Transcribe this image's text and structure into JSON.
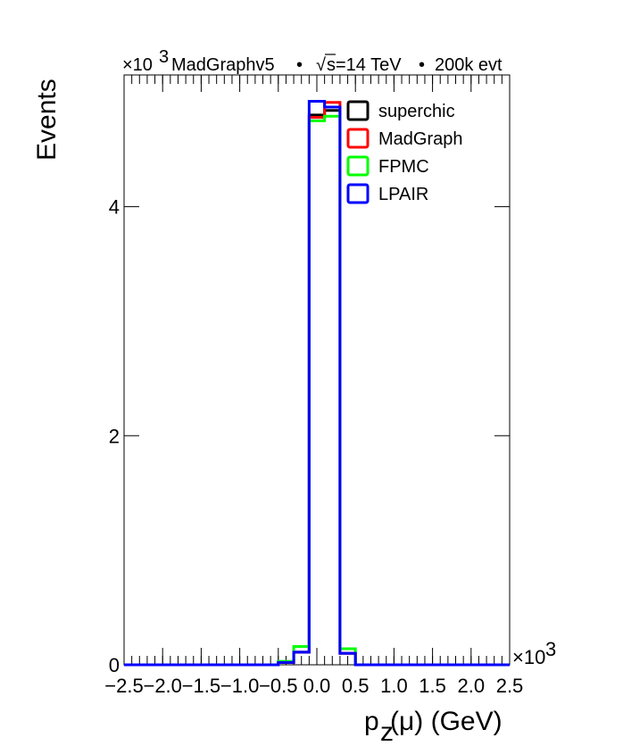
{
  "header": {
    "multiplier": "×10",
    "multiplier_exp": "3",
    "generator": "MadGraphv5",
    "sep1": "•",
    "energy_sqrt": "√",
    "energy_s": "s",
    "energy_val": "=14 TeV",
    "sep2": "•",
    "events": "200k evt"
  },
  "x_multiplier": "×10",
  "x_multiplier_exp": "3",
  "chart_data": {
    "type": "line",
    "title": "",
    "xlabel_main": "p",
    "xlabel_sub": "z",
    "xlabel_rest": "(μ) (GeV)",
    "ylabel": "Events",
    "xlim": [
      -2.5,
      2.5
    ],
    "ylim": [
      0,
      5.15
    ],
    "x_ticks": [
      -2.5,
      -2.0,
      -1.5,
      -1.0,
      -0.5,
      0.0,
      0.5,
      1.0,
      1.5,
      2.0,
      2.5
    ],
    "x_tick_labels": [
      "−2.5",
      "−2.0",
      "−1.5",
      "−1.0",
      "−0.5",
      "0.0",
      "0.5",
      "1.0",
      "1.5",
      "2.0",
      "2.5"
    ],
    "y_ticks": [
      0,
      2,
      4
    ],
    "y_tick_labels": [
      "0",
      "2",
      "4"
    ],
    "bin_edges": [
      -2.5,
      -0.5,
      -0.3,
      -0.1,
      0.1,
      0.3,
      0.5,
      2.5
    ],
    "series": [
      {
        "name": "superchic",
        "color": "#000000",
        "values": [
          0.0,
          0.02,
          0.11,
          4.8,
          4.84,
          0.1,
          0.0
        ]
      },
      {
        "name": "MadGraph",
        "color": "#ff0000",
        "values": [
          0.0,
          0.02,
          0.11,
          4.78,
          4.91,
          0.1,
          0.0
        ]
      },
      {
        "name": "FPMC",
        "color": "#00ff00",
        "values": [
          0.0,
          0.03,
          0.16,
          4.75,
          4.79,
          0.14,
          0.0
        ]
      },
      {
        "name": "LPAIR",
        "color": "#0000ff",
        "values": [
          0.0,
          0.02,
          0.11,
          4.92,
          4.87,
          0.1,
          0.0
        ]
      }
    ],
    "grid": false,
    "legend_position": "top-right"
  }
}
